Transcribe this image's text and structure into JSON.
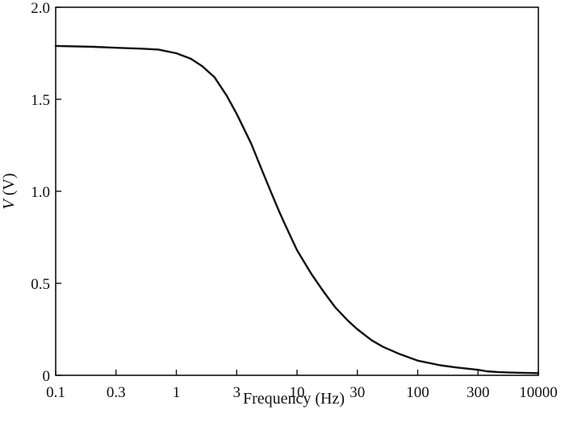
{
  "chart_data": {
    "type": "line",
    "x_scale": "log",
    "xlabel": "Frequency (Hz)",
    "ylabel_symbol": "V",
    "ylabel_unit": " (V)",
    "ylim": [
      0,
      2.0
    ],
    "grid": false,
    "x_ticks": [
      {
        "value": 0.1,
        "label": "0.1"
      },
      {
        "value": 0.3,
        "label": "0.3"
      },
      {
        "value": 1,
        "label": "1"
      },
      {
        "value": 3,
        "label": "3"
      },
      {
        "value": 10,
        "label": "10"
      },
      {
        "value": 30,
        "label": "30"
      },
      {
        "value": 100,
        "label": "100"
      },
      {
        "value": 300,
        "label": "300"
      },
      {
        "value": 10000,
        "label": "10000"
      }
    ],
    "y_ticks": [
      {
        "value": 0,
        "label": "0"
      },
      {
        "value": 0.5,
        "label": "0.5"
      },
      {
        "value": 1.0,
        "label": "1.0"
      },
      {
        "value": 1.5,
        "label": "1.5"
      },
      {
        "value": 2.0,
        "label": "2.0"
      }
    ],
    "series": [
      {
        "x": [
          0.1,
          0.2,
          0.3,
          0.5,
          0.7,
          1,
          1.3,
          1.6,
          2,
          2.5,
          3,
          4,
          5,
          6,
          7,
          8,
          10,
          13,
          16,
          20,
          25,
          30,
          40,
          50,
          70,
          100,
          150,
          200,
          300,
          500,
          1000,
          3000,
          10000
        ],
        "values": [
          1.79,
          1.785,
          1.78,
          1.775,
          1.77,
          1.75,
          1.72,
          1.68,
          1.62,
          1.52,
          1.42,
          1.26,
          1.11,
          0.99,
          0.89,
          0.81,
          0.68,
          0.55,
          0.46,
          0.37,
          0.3,
          0.25,
          0.19,
          0.155,
          0.115,
          0.08,
          0.055,
          0.043,
          0.03,
          0.022,
          0.017,
          0.014,
          0.012
        ]
      }
    ]
  }
}
